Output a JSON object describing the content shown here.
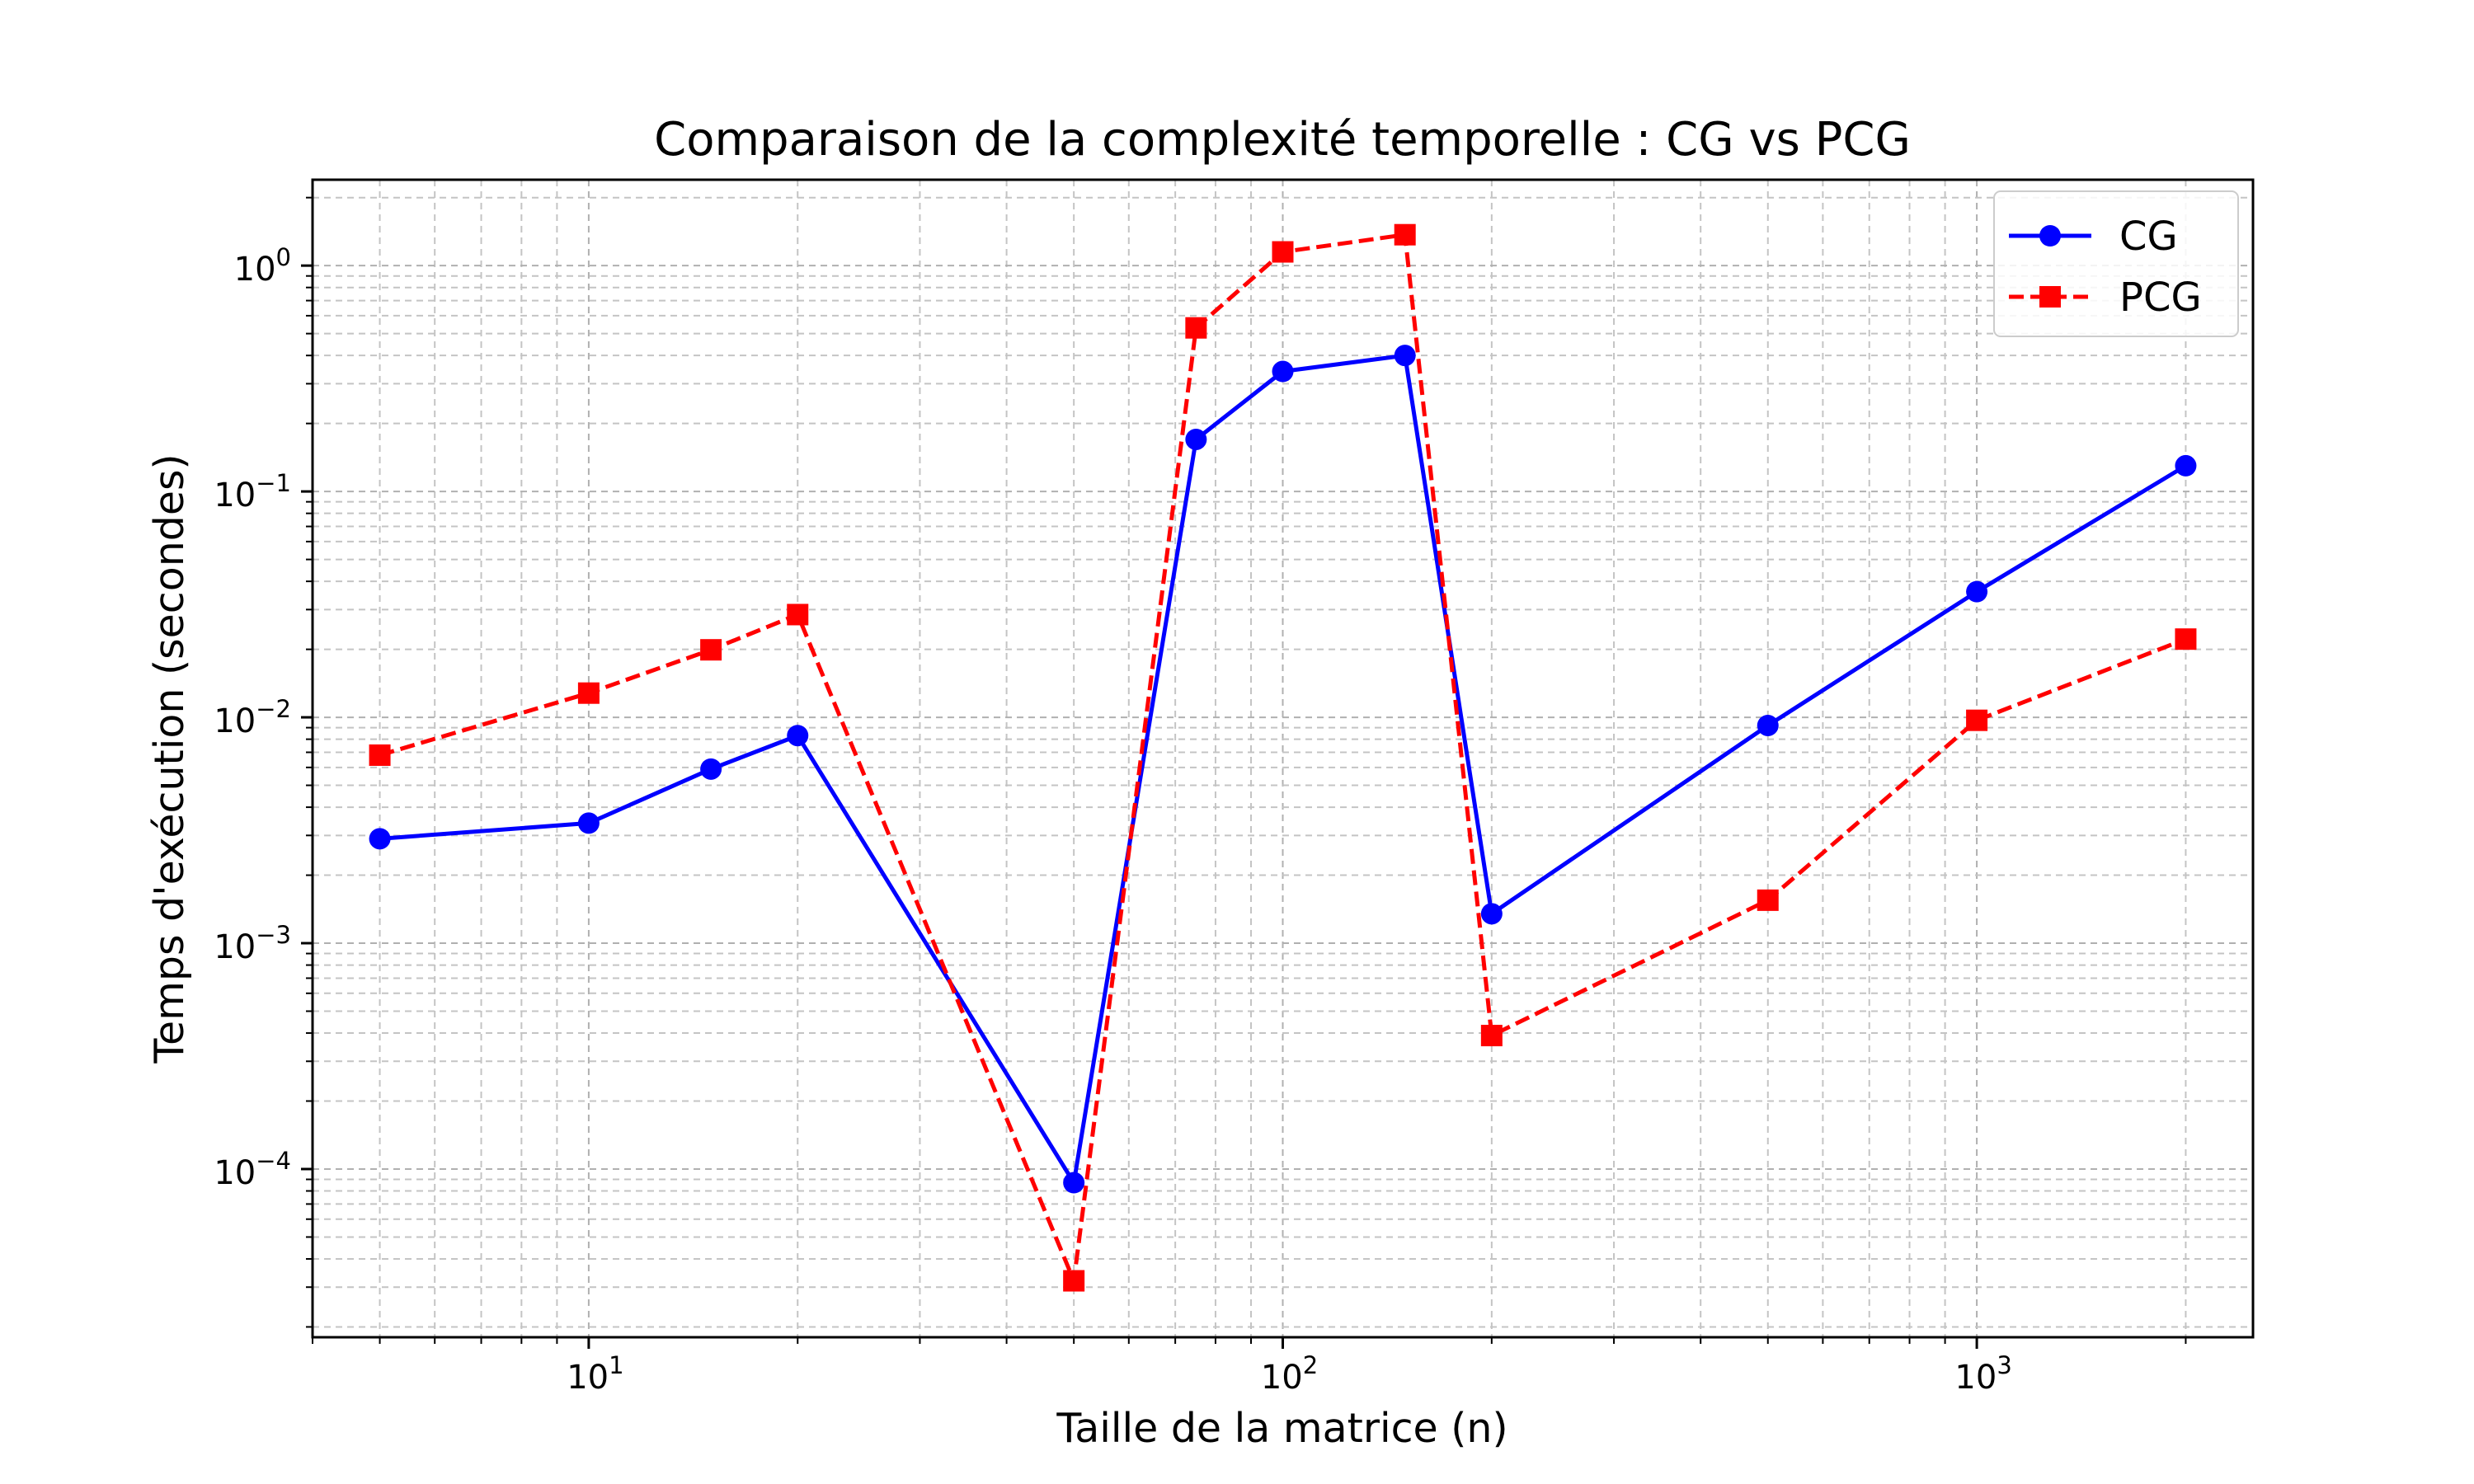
{
  "chart_data": {
    "type": "line",
    "title": "Comparaison de la complexité temporelle : CG vs PCG",
    "xlabel": "Taille de la matrice (n)",
    "ylabel": "Temps d'exécution (secondes)",
    "xscale": "log",
    "yscale": "log",
    "xlim": [
      4,
      2500
    ],
    "ylim": [
      1.8e-05,
      2.4
    ],
    "grid": "major and minor, dashed",
    "legend_position": "top-right",
    "x_ticks": [
      {
        "value": 10,
        "base": "10",
        "exp": "1"
      },
      {
        "value": 100,
        "base": "10",
        "exp": "2"
      },
      {
        "value": 1000,
        "base": "10",
        "exp": "3"
      }
    ],
    "y_ticks": [
      {
        "value": 0.0001,
        "base": "10",
        "exp": "−4"
      },
      {
        "value": 0.001,
        "base": "10",
        "exp": "−3"
      },
      {
        "value": 0.01,
        "base": "10",
        "exp": "−2"
      },
      {
        "value": 0.1,
        "base": "10",
        "exp": "−1"
      },
      {
        "value": 1,
        "base": "10",
        "exp": "0"
      }
    ],
    "x": [
      5,
      10,
      15,
      20,
      50,
      75,
      100,
      150,
      200,
      500,
      1000,
      2000
    ],
    "series": [
      {
        "name": "CG",
        "color": "#0000ff",
        "linestyle": "solid",
        "marker": "circle",
        "values": [
          0.0029,
          0.0034,
          0.0059,
          0.0083,
          8.7e-05,
          0.17,
          0.34,
          0.4,
          0.00135,
          0.0092,
          0.036,
          0.13
        ]
      },
      {
        "name": "PCG",
        "color": "#ff0000",
        "linestyle": "dashed",
        "marker": "square",
        "values": [
          0.0068,
          0.0128,
          0.0199,
          0.0285,
          3.2e-05,
          0.53,
          1.15,
          1.37,
          0.00039,
          0.00155,
          0.0097,
          0.0222
        ]
      }
    ]
  }
}
